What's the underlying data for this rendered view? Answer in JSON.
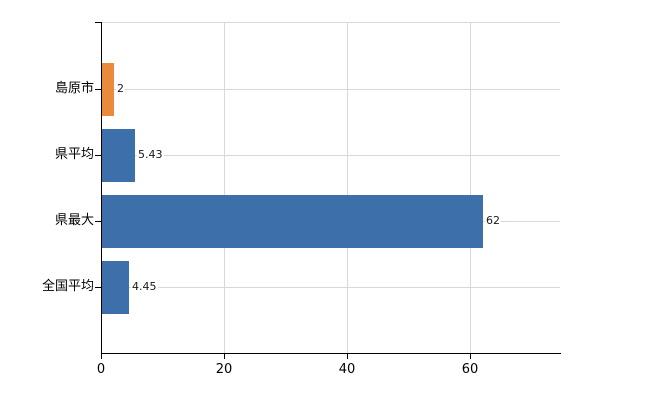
{
  "chart_data": {
    "type": "bar",
    "orientation": "horizontal",
    "title": "",
    "xlabel": "",
    "ylabel": "",
    "categories": [
      "島原市",
      "県平均",
      "県最大",
      "全国平均"
    ],
    "values": [
      2,
      5.43,
      62,
      4.45
    ],
    "value_labels": [
      "2",
      "5.43",
      "62",
      "4.45"
    ],
    "highlight_index": 0,
    "x_ticks": [
      0,
      20,
      40,
      60
    ],
    "x_tick_labels": [
      "0",
      "20",
      "40",
      "60"
    ],
    "xlim": [
      0,
      74.6
    ],
    "grid": true,
    "legend": "none"
  },
  "colors": {
    "bar_highlight": "#eb8a3a",
    "bar_default": "#3d6faa",
    "grid": "#d9d9d9",
    "axis": "#000000",
    "text": "#000000",
    "background": "#ffffff"
  }
}
